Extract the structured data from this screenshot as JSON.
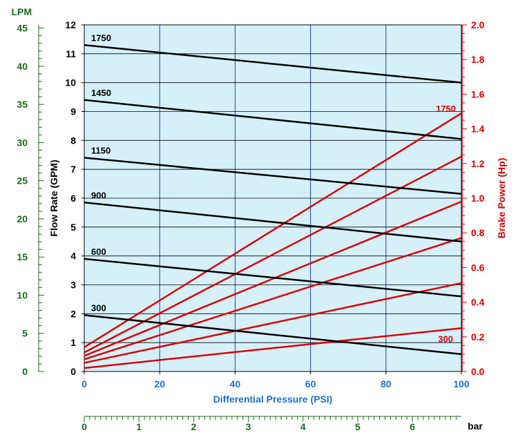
{
  "chart_data": {
    "type": "line",
    "xlabel": "Differential Pressure (PSI)",
    "xlim": [
      0,
      100
    ],
    "x_ticks": [
      "0",
      "20",
      "40",
      "60",
      "80",
      "100"
    ],
    "ylabel_left": "Flow Rate (GPM)",
    "ylim_left": [
      0,
      12
    ],
    "y_ticks_left": [
      "0",
      "1",
      "2",
      "3",
      "4",
      "5",
      "6",
      "7",
      "8",
      "9",
      "10",
      "11",
      "12"
    ],
    "ylabel_right": "Brake Power (Hp)",
    "ylim_right": [
      0,
      2.0
    ],
    "y_ticks_right": [
      "0.0",
      "0.2",
      "0.4",
      "0.6",
      "0.8",
      "1.0",
      "1.2",
      "1.4",
      "1.6",
      "1.8",
      "2.0"
    ],
    "lpm_axis": {
      "label": "LPM",
      "range": [
        0,
        45.42
      ],
      "ticks": [
        "0",
        "5",
        "10",
        "15",
        "20",
        "25",
        "30",
        "35",
        "40",
        "45"
      ]
    },
    "bar_axis": {
      "label": "bar",
      "range": [
        0,
        6.895
      ],
      "ticks": [
        "0",
        "1",
        "2",
        "3",
        "4",
        "5",
        "6"
      ]
    },
    "grid": true,
    "flow_series": [
      {
        "name": "1750",
        "x": [
          0,
          100
        ],
        "y": [
          11.3,
          10.0
        ]
      },
      {
        "name": "1450",
        "x": [
          0,
          100
        ],
        "y": [
          9.4,
          8.05
        ]
      },
      {
        "name": "1150",
        "x": [
          0,
          100
        ],
        "y": [
          7.4,
          6.15
        ]
      },
      {
        "name": "900",
        "x": [
          0,
          100
        ],
        "y": [
          5.85,
          4.5
        ]
      },
      {
        "name": "600",
        "x": [
          0,
          100
        ],
        "y": [
          3.9,
          2.6
        ]
      },
      {
        "name": "300",
        "x": [
          0,
          100
        ],
        "y": [
          1.95,
          0.6
        ]
      }
    ],
    "power_series": [
      {
        "name": "1750",
        "x": [
          0,
          100
        ],
        "y": [
          0.14,
          1.49
        ]
      },
      {
        "name": "",
        "x": [
          0,
          100
        ],
        "y": [
          0.11,
          1.24
        ]
      },
      {
        "name": "",
        "x": [
          0,
          100
        ],
        "y": [
          0.09,
          0.98
        ]
      },
      {
        "name": "",
        "x": [
          0,
          100
        ],
        "y": [
          0.07,
          0.77
        ]
      },
      {
        "name": "",
        "x": [
          0,
          100
        ],
        "y": [
          0.05,
          0.51
        ]
      },
      {
        "name": "300",
        "x": [
          0,
          100
        ],
        "y": [
          0.02,
          0.25
        ]
      }
    ],
    "colors": {
      "plot_bg": "#d6f0fa",
      "grid": "#1a3ab0",
      "flow": "#000000",
      "power": "#dd0000",
      "xlabel": "#1a6fd1",
      "lpm": "#1a6a1a"
    }
  }
}
